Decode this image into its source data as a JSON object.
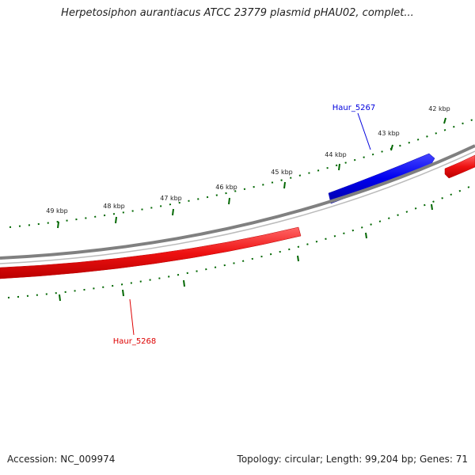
{
  "title": "Herpetosiphon aurantiacus ATCC 23779 plasmid pHAU02, complet...",
  "footer": {
    "accession": "Accession: NC_009974",
    "summary": "Topology: circular; Length: 99,204 bp; Genes: 71"
  },
  "map": {
    "tick_labels": [
      "42 kbp",
      "43 kbp",
      "44 kbp",
      "45 kbp",
      "46 kbp",
      "47 kbp",
      "48 kbp",
      "49 kbp"
    ],
    "genes": [
      {
        "label": "Haur_5267",
        "strand": "forward",
        "color": "#0000dd"
      },
      {
        "label": "Haur_5268",
        "strand": "reverse",
        "color": "#dd0000"
      },
      {
        "label": "",
        "strand": "reverse",
        "color": "#ee1111"
      }
    ],
    "colors": {
      "backbone": "#808080",
      "ticks": "#006600",
      "forward": "#0000dd",
      "reverse": "#dd0000"
    }
  }
}
